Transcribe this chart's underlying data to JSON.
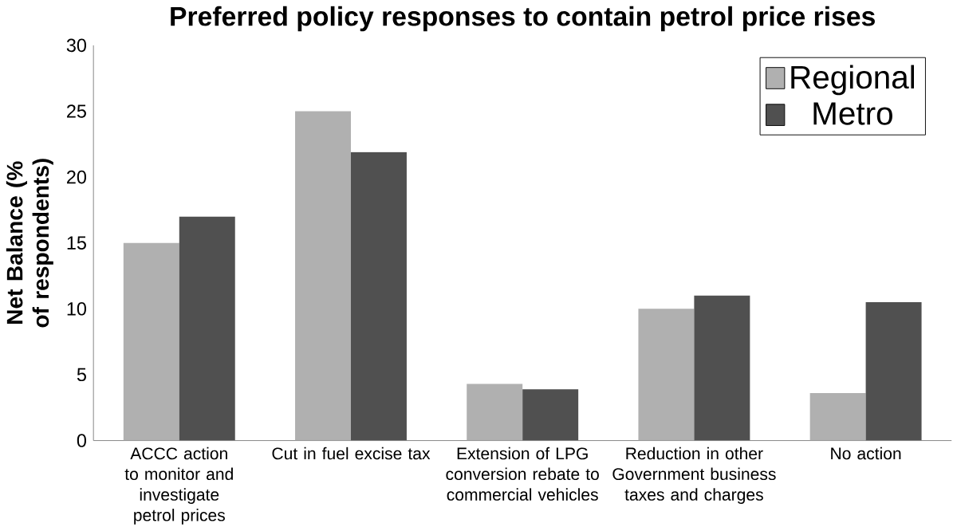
{
  "chart_data": {
    "type": "bar",
    "title": "Preferred policy responses to contain petrol price rises",
    "ylabel": "Net Balance (% of respondents)",
    "categories": [
      "ACCC action to monitor and investigate petrol prices",
      "Cut in fuel excise tax",
      "Extension of LPG conversion rebate to commercial vehicles",
      "Reduction in other Government business taxes and charges",
      "No action"
    ],
    "series": [
      {
        "name": "Regional",
        "color": "#b0b0b0",
        "values": [
          15,
          25,
          4.3,
          10,
          3.6
        ]
      },
      {
        "name": "Metro",
        "color": "#505050",
        "values": [
          17,
          21.9,
          3.9,
          11,
          10.5
        ]
      }
    ],
    "ylim": [
      0,
      30
    ],
    "yticks": [
      0,
      5,
      10,
      15,
      20,
      25,
      30
    ],
    "grid": false,
    "legend": "top right"
  }
}
